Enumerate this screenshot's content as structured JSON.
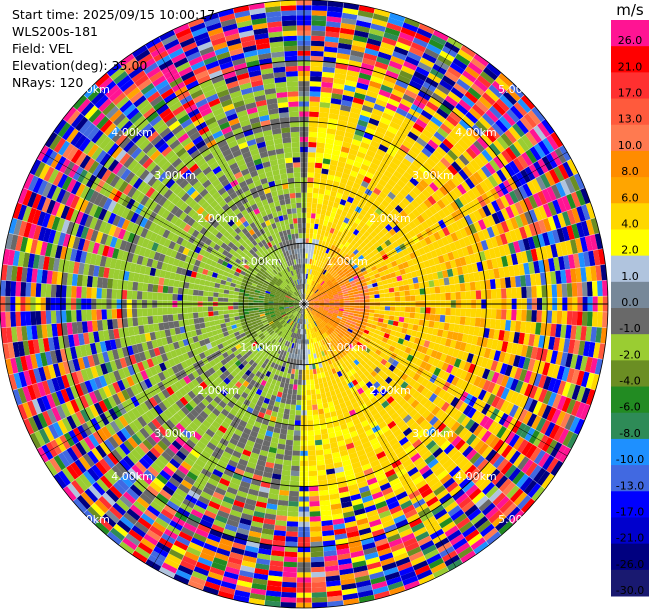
{
  "header": {
    "start_time": "Start time: 2025/09/15 10:00:17",
    "instrument": "WLS200s-181",
    "field": "Field: VEL",
    "elevation": "Elevation(deg): 35.00",
    "nrays": "NRays: 120"
  },
  "colorbar": {
    "unit": "m/s",
    "ticks": [
      "26.0",
      "21.0",
      "17.0",
      "13.0",
      "10.0",
      "8.0",
      "6.0",
      "4.0",
      "2.0",
      "1.0",
      "0.0",
      "-1.0",
      "-2.0",
      "-4.0",
      "-6.0",
      "-8.0",
      "-10.0",
      "-13.0",
      "-17.0",
      "-21.0",
      "-26.0",
      "-30.0"
    ],
    "colors": [
      "#ff1493",
      "#ff0000",
      "#ff3030",
      "#ff5a3c",
      "#ff7a50",
      "#ff8c00",
      "#ffa500",
      "#ffd700",
      "#ffff00",
      "#b0c4de",
      "#778899",
      "#696969",
      "#9acd32",
      "#6b8e23",
      "#228b22",
      "#2e8b57",
      "#1e90ff",
      "#4169e1",
      "#0000ff",
      "#0000cd",
      "#000080",
      "#191970"
    ]
  },
  "chart_data": {
    "type": "ppi",
    "field": "VEL",
    "units": "m/s",
    "nrays": 120,
    "elevation_deg": 35.0,
    "value_range": [
      -30,
      26
    ],
    "range_rings": [
      {
        "label": "1.00km",
        "range_km": 1.0
      },
      {
        "label": "2.00km",
        "range_km": 2.0
      },
      {
        "label": "3.00km",
        "range_km": 3.0
      },
      {
        "label": "4.00km",
        "range_km": 4.0
      },
      {
        "label": "5.00km",
        "range_km": 5.0
      }
    ],
    "max_range_km": 5.0,
    "description_pattern": {
      "near_field_west_velocity": -6.0,
      "near_field_east_velocity": 8.0,
      "mid_field_west_velocity": -2.0,
      "mid_field_east_velocity": 2.0,
      "far_field": "noise"
    }
  }
}
